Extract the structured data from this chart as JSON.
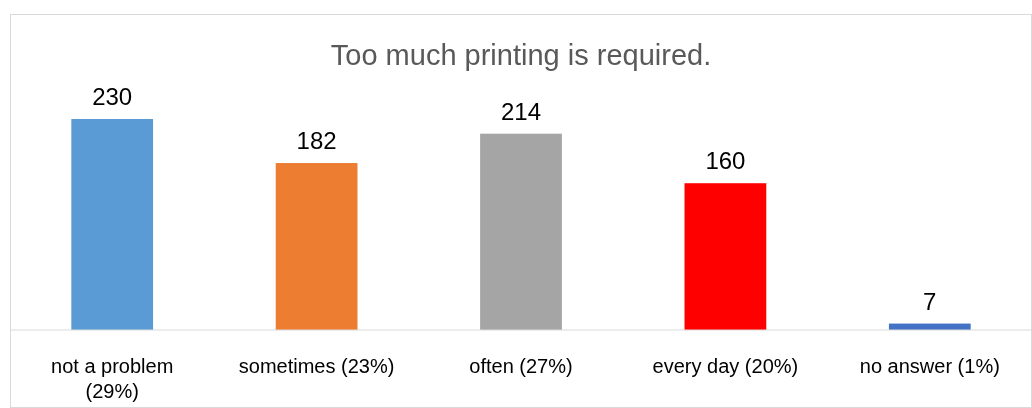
{
  "chart_data": {
    "type": "bar",
    "title": "Too much printing is required.",
    "categories": [
      "not a problem (29%)",
      "sometimes (23%)",
      "often (27%)",
      "every day (20%)",
      "no answer (1%)"
    ],
    "values": [
      230,
      182,
      214,
      160,
      7
    ],
    "colors": [
      "#5b9bd5",
      "#ed7d31",
      "#a5a5a5",
      "#ff0000",
      "#4472c4"
    ],
    "data_labels": true
  }
}
